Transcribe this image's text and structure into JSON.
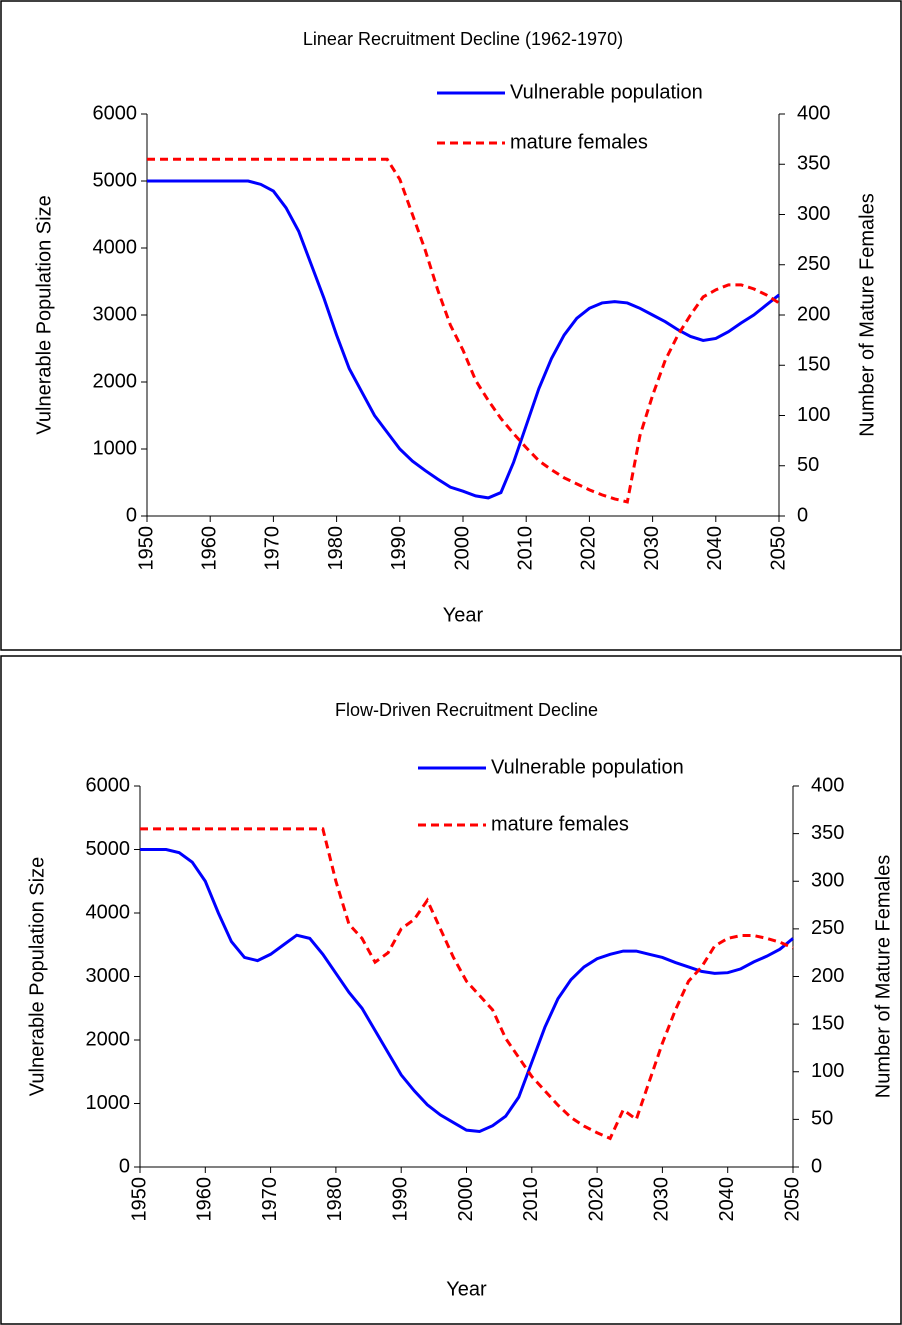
{
  "chart_data": [
    {
      "type": "line",
      "title": "Linear Recruitment Decline (1962-1970)",
      "xlabel": "Year",
      "ylabel": "Vulnerable Population Size",
      "y2label": "Number of Mature Females",
      "x": [
        1950,
        1952,
        1954,
        1956,
        1958,
        1960,
        1962,
        1964,
        1966,
        1968,
        1970,
        1972,
        1974,
        1976,
        1978,
        1980,
        1982,
        1984,
        1986,
        1988,
        1990,
        1992,
        1994,
        1996,
        1998,
        2000,
        2002,
        2004,
        2006,
        2008,
        2010,
        2012,
        2014,
        2016,
        2018,
        2020,
        2022,
        2024,
        2026,
        2028,
        2030,
        2032,
        2034,
        2036,
        2038,
        2040,
        2042,
        2044,
        2046,
        2048,
        2050
      ],
      "xlim": [
        1950,
        2050
      ],
      "xticks": [
        1950,
        1960,
        1970,
        1980,
        1990,
        2000,
        2010,
        2020,
        2030,
        2040,
        2050
      ],
      "ylim": [
        0,
        6000
      ],
      "yticks": [
        0,
        1000,
        2000,
        3000,
        4000,
        5000,
        6000
      ],
      "y2lim": [
        0,
        400
      ],
      "y2ticks": [
        0,
        50,
        100,
        150,
        200,
        250,
        300,
        350,
        400
      ],
      "series": [
        {
          "name": "Vulnerable population",
          "color": "#0000ff",
          "style": "solid",
          "values": [
            5000,
            5000,
            5000,
            5000,
            5000,
            5000,
            5000,
            5000,
            5000,
            4950,
            4850,
            4600,
            4250,
            3750,
            3250,
            2700,
            2200,
            1850,
            1500,
            1250,
            1000,
            820,
            680,
            550,
            430,
            370,
            300,
            270,
            350,
            800,
            1350,
            1900,
            2350,
            2700,
            2950,
            3100,
            3180,
            3200,
            3180,
            3100,
            3000,
            2900,
            2780,
            2680,
            2620,
            2650,
            2750,
            2880,
            3000,
            3150,
            3300
          ]
        },
        {
          "name": "mature females",
          "color": "#ff0000",
          "style": "dashed",
          "axis": "y2",
          "values": [
            355,
            355,
            355,
            355,
            355,
            355,
            355,
            355,
            355,
            355,
            355,
            355,
            355,
            355,
            355,
            355,
            355,
            355,
            355,
            355,
            335,
            300,
            265,
            225,
            190,
            165,
            135,
            115,
            97,
            82,
            68,
            55,
            46,
            38,
            32,
            26,
            21,
            17,
            14,
            80,
            120,
            155,
            180,
            200,
            218,
            225,
            230,
            230,
            226,
            220,
            212
          ]
        }
      ]
    },
    {
      "type": "line",
      "title": "Flow-Driven Recruitment Decline",
      "xlabel": "Year",
      "ylabel": "Vulnerable Population Size",
      "y2label": "Number of Mature Females",
      "x": [
        1950,
        1952,
        1954,
        1956,
        1958,
        1960,
        1962,
        1964,
        1966,
        1968,
        1970,
        1972,
        1974,
        1976,
        1978,
        1980,
        1982,
        1984,
        1986,
        1988,
        1990,
        1992,
        1994,
        1996,
        1998,
        2000,
        2002,
        2004,
        2006,
        2008,
        2010,
        2012,
        2014,
        2016,
        2018,
        2020,
        2022,
        2024,
        2026,
        2028,
        2030,
        2032,
        2034,
        2036,
        2038,
        2040,
        2042,
        2044,
        2046,
        2048,
        2050
      ],
      "xlim": [
        1950,
        2050
      ],
      "xticks": [
        1950,
        1960,
        1970,
        1980,
        1990,
        2000,
        2010,
        2020,
        2030,
        2040,
        2050
      ],
      "ylim": [
        0,
        6000
      ],
      "yticks": [
        0,
        1000,
        2000,
        3000,
        4000,
        5000,
        6000
      ],
      "y2lim": [
        0,
        400
      ],
      "y2ticks": [
        0,
        50,
        100,
        150,
        200,
        250,
        300,
        350,
        400
      ],
      "series": [
        {
          "name": "Vulnerable population",
          "color": "#0000ff",
          "style": "solid",
          "values": [
            5000,
            5000,
            5000,
            4950,
            4800,
            4500,
            4000,
            3550,
            3300,
            3250,
            3350,
            3500,
            3650,
            3600,
            3350,
            3050,
            2750,
            2500,
            2150,
            1800,
            1450,
            1200,
            980,
            820,
            700,
            580,
            560,
            650,
            800,
            1100,
            1650,
            2200,
            2650,
            2950,
            3150,
            3280,
            3350,
            3400,
            3400,
            3350,
            3300,
            3220,
            3150,
            3080,
            3050,
            3060,
            3120,
            3230,
            3320,
            3430,
            3600
          ]
        },
        {
          "name": "mature females",
          "color": "#ff0000",
          "style": "dashed",
          "axis": "y2",
          "values": [
            355,
            355,
            355,
            355,
            355,
            355,
            355,
            355,
            355,
            355,
            355,
            355,
            355,
            355,
            355,
            300,
            255,
            240,
            215,
            225,
            250,
            260,
            280,
            250,
            220,
            195,
            180,
            165,
            135,
            115,
            95,
            80,
            65,
            52,
            43,
            36,
            30,
            60,
            50,
            90,
            130,
            165,
            195,
            210,
            232,
            240,
            243,
            243,
            240,
            236,
            230
          ]
        }
      ]
    }
  ]
}
